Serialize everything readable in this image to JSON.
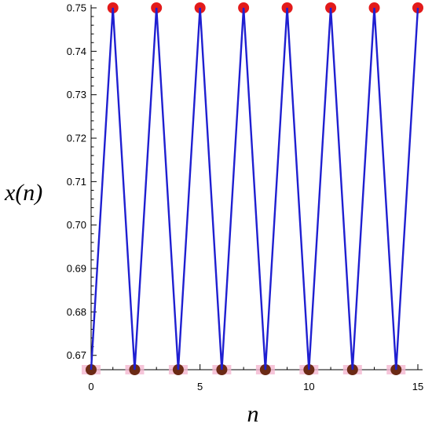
{
  "chart_data": {
    "type": "line",
    "title": "",
    "xlabel": "n",
    "ylabel": "x(n)",
    "xlim": [
      0,
      15
    ],
    "ylim": [
      0.6667,
      0.75
    ],
    "x_ticks": [
      0,
      5,
      10,
      15
    ],
    "x_tick_labels": [
      "0",
      "5",
      "10",
      "15"
    ],
    "y_ticks": [
      0.67,
      0.68,
      0.69,
      0.7,
      0.71,
      0.72,
      0.73,
      0.74,
      0.75
    ],
    "y_tick_labels": [
      "0.67",
      "0.68",
      "0.69",
      "0.70",
      "0.71",
      "0.72",
      "0.73",
      "0.74",
      "0.75"
    ],
    "grid": false,
    "legend": "none",
    "series": [
      {
        "x": [
          0,
          1,
          2,
          3,
          4,
          5,
          6,
          7,
          8,
          9,
          10,
          11,
          12,
          13,
          14,
          15
        ],
        "y": [
          0.6667,
          0.75,
          0.6667,
          0.75,
          0.6667,
          0.75,
          0.6667,
          0.75,
          0.6667,
          0.75,
          0.6667,
          0.75,
          0.6667,
          0.75,
          0.6667,
          0.75
        ],
        "line_color": "#1f1fd1",
        "marker_color_high": "#e31a1a",
        "marker_color_low": "#6b2a14",
        "marker_halo_low": "#f4b6cf"
      }
    ]
  }
}
